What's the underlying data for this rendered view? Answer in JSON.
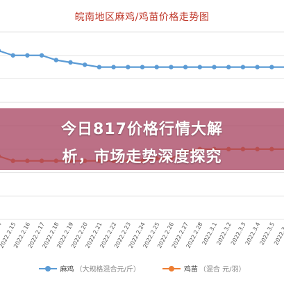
{
  "colors": {
    "series1": "#5b9bd5",
    "series2": "#ed7d31",
    "title": "#c0392b",
    "grid": "#e6e6e6",
    "overlay": "#a53e5c"
  },
  "overlay": {
    "line1": "今日817价格行情大解",
    "line2": "析，市场走势深度探究"
  },
  "legend": {
    "items": [
      {
        "name": "麻鸡",
        "unit": "（大规格混合元/斤）",
        "color": "#5b9bd5"
      },
      {
        "name": "鸡苗",
        "unit": "（混合 元/羽）",
        "color": "#ed7d31"
      }
    ]
  },
  "chart_data": {
    "type": "line",
    "title": "皖南地区麻鸡/鸡苗价格走势图",
    "grid": true,
    "legend_position": "bottom",
    "categories": [
      "2022.2.14",
      "2022.2.15",
      "2022.2.16",
      "2022.2.17",
      "2022.2.18",
      "2022.2.19",
      "2022.2.20",
      "2022.2.21",
      "2022.2.22",
      "2022.2.23",
      "2022.2.24",
      "2022.2.25",
      "2022.2.26",
      "2022.2.27",
      "2022.2.28",
      "2022.3.1",
      "2022.3.2",
      "2022.3.3",
      "2022.3.4",
      "2022.3.5",
      "2022.3.6"
    ],
    "ylim": [
      0,
      8
    ],
    "series": [
      {
        "name": "麻鸡",
        "color": "#5b9bd5",
        "values": [
          7.2,
          7.0,
          7.0,
          7.0,
          6.8,
          6.7,
          6.6,
          6.5,
          6.5,
          6.5,
          6.5,
          6.5,
          6.5,
          6.5,
          6.5,
          6.5,
          6.5,
          6.5,
          6.5,
          6.5,
          6.5
        ]
      },
      {
        "name": "鸡苗",
        "color": "#ed7d31",
        "values": [
          2.7,
          2.5,
          2.5,
          2.5,
          2.5,
          2.5,
          2.5,
          2.5,
          2.5,
          2.5,
          2.5,
          2.6,
          2.6,
          2.9,
          3.0,
          3.0,
          3.0,
          3.0,
          3.0,
          3.0,
          3.0
        ]
      }
    ]
  }
}
